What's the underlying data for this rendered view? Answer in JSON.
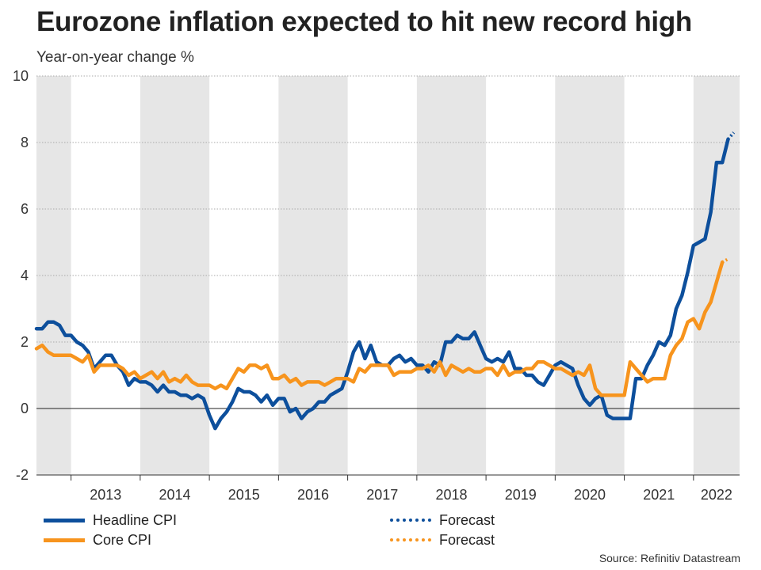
{
  "title": "Eurozone inflation expected to hit new record high",
  "subtitle": "Year-on-year change %",
  "source": "Source: Refinitiv Datastream",
  "colors": {
    "headline": "#0d4f9c",
    "core": "#f7941d",
    "band": "#e6e6e6",
    "grid": "#aaaaaa"
  },
  "legend": [
    {
      "label": "Headline CPI",
      "series": "headline",
      "style": "solid"
    },
    {
      "label": "Core CPI",
      "series": "core",
      "style": "solid"
    },
    {
      "label": "Forecast",
      "series": "headline",
      "style": "dotted"
    },
    {
      "label": "Forecast",
      "series": "core",
      "style": "dotted"
    }
  ],
  "chart_data": {
    "type": "line",
    "title": "Eurozone inflation expected to hit new record high",
    "ylabel": "Year-on-year change %",
    "xlabel": "",
    "ylim": [
      -2,
      10
    ],
    "yticks": [
      -2,
      0,
      2,
      4,
      6,
      8,
      10
    ],
    "x_start": "2012-07",
    "x_end": "2022-09",
    "year_labels": [
      "2013",
      "2014",
      "2015",
      "2016",
      "2017",
      "2018",
      "2019",
      "2020",
      "2021",
      "2022"
    ],
    "year_boundaries": [
      2013,
      2014,
      2015,
      2016,
      2017,
      2018,
      2019,
      2020,
      2021,
      2022
    ],
    "series": [
      {
        "name": "Headline CPI",
        "start": "2012-07",
        "values": [
          2.4,
          2.4,
          2.6,
          2.6,
          2.5,
          2.2,
          2.2,
          2.0,
          1.9,
          1.7,
          1.2,
          1.4,
          1.6,
          1.6,
          1.3,
          1.1,
          0.7,
          0.9,
          0.8,
          0.8,
          0.7,
          0.5,
          0.7,
          0.5,
          0.5,
          0.4,
          0.4,
          0.3,
          0.4,
          0.3,
          -0.2,
          -0.6,
          -0.3,
          -0.1,
          0.2,
          0.6,
          0.5,
          0.5,
          0.4,
          0.2,
          0.4,
          0.1,
          0.3,
          0.3,
          -0.1,
          0.0,
          -0.3,
          -0.1,
          0.0,
          0.2,
          0.2,
          0.4,
          0.5,
          0.6,
          1.1,
          1.7,
          2.0,
          1.5,
          1.9,
          1.4,
          1.3,
          1.3,
          1.5,
          1.6,
          1.4,
          1.5,
          1.3,
          1.3,
          1.1,
          1.4,
          1.3,
          2.0,
          2.0,
          2.2,
          2.1,
          2.1,
          2.3,
          1.9,
          1.5,
          1.4,
          1.5,
          1.4,
          1.7,
          1.2,
          1.2,
          1.0,
          1.0,
          0.8,
          0.7,
          1.0,
          1.3,
          1.4,
          1.3,
          1.2,
          0.7,
          0.3,
          0.1,
          0.3,
          0.4,
          -0.2,
          -0.3,
          -0.3,
          -0.3,
          -0.3,
          0.9,
          0.9,
          1.3,
          1.6,
          2.0,
          1.9,
          2.2,
          3.0,
          3.4,
          4.1,
          4.9,
          5.0,
          5.1,
          5.9,
          7.4,
          7.4,
          8.1
        ],
        "forecast": [
          8.1,
          8.3
        ]
      },
      {
        "name": "Core CPI",
        "start": "2012-07",
        "values": [
          1.8,
          1.9,
          1.7,
          1.6,
          1.6,
          1.6,
          1.6,
          1.5,
          1.4,
          1.6,
          1.1,
          1.3,
          1.3,
          1.3,
          1.3,
          1.2,
          1.0,
          1.1,
          0.9,
          1.0,
          1.1,
          0.9,
          1.1,
          0.8,
          0.9,
          0.8,
          1.0,
          0.8,
          0.7,
          0.7,
          0.7,
          0.6,
          0.7,
          0.6,
          0.9,
          1.2,
          1.1,
          1.3,
          1.3,
          1.2,
          1.3,
          0.9,
          0.9,
          1.0,
          0.8,
          0.9,
          0.7,
          0.8,
          0.8,
          0.8,
          0.7,
          0.8,
          0.9,
          0.9,
          0.9,
          0.8,
          1.2,
          1.1,
          1.3,
          1.3,
          1.3,
          1.3,
          1.0,
          1.1,
          1.1,
          1.1,
          1.2,
          1.2,
          1.3,
          1.1,
          1.4,
          1.0,
          1.3,
          1.2,
          1.1,
          1.2,
          1.1,
          1.1,
          1.2,
          1.2,
          1.0,
          1.3,
          1.0,
          1.1,
          1.1,
          1.2,
          1.2,
          1.4,
          1.4,
          1.3,
          1.2,
          1.2,
          1.1,
          1.0,
          1.1,
          1.0,
          1.3,
          0.6,
          0.4,
          0.4,
          0.4,
          0.4,
          0.4,
          1.4,
          1.2,
          1.0,
          0.8,
          0.9,
          0.9,
          0.9,
          1.6,
          1.9,
          2.1,
          2.6,
          2.7,
          2.4,
          2.9,
          3.2,
          3.8,
          4.4
        ],
        "forecast": [
          4.4,
          4.5
        ]
      }
    ]
  }
}
